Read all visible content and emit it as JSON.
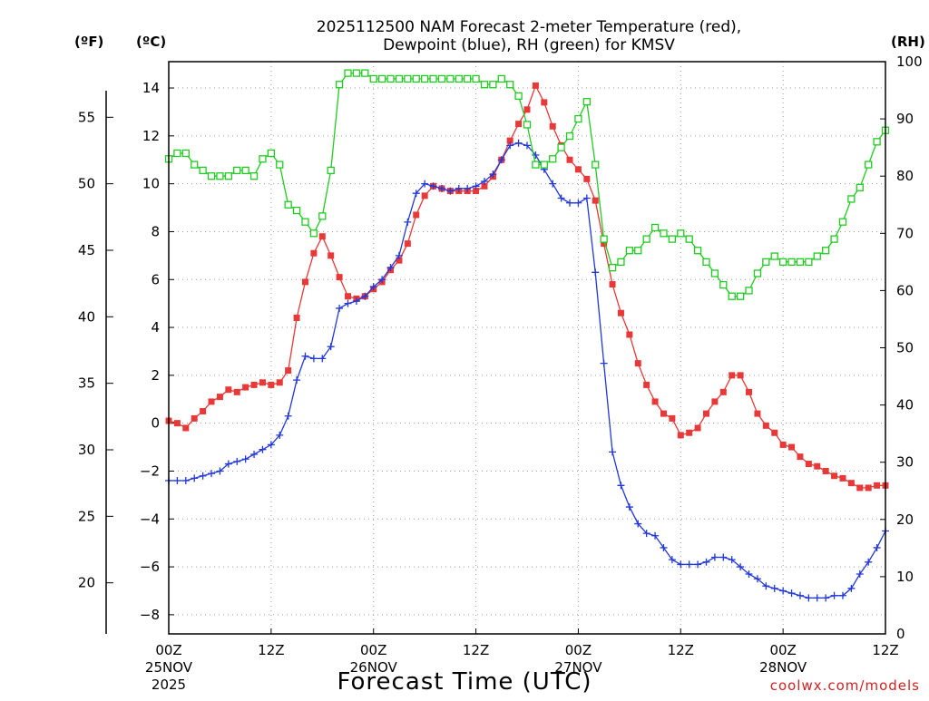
{
  "title": {
    "line1": "2025112500 NAM Forecast 2-meter Temperature (red),",
    "line2": "Dewpoint (blue), RH (green) for KMSV"
  },
  "axis_units": {
    "fahrenheit": "(ºF)",
    "celsius": "(ºC)",
    "rh": "(RH)"
  },
  "xlabel": "Forecast Time (UTC)",
  "credit": "coolwx.com/models",
  "colors": {
    "temperature": "#e83838",
    "dewpoint": "#2238d8",
    "rh": "#20cc20"
  },
  "chart_data": {
    "type": "line",
    "x_unit": "forecast hour",
    "x_range": [
      0,
      84
    ],
    "x_ticks": [
      {
        "hour": 0,
        "label": "00Z",
        "date": "25NOV",
        "year": "2025"
      },
      {
        "hour": 12,
        "label": "12Z"
      },
      {
        "hour": 24,
        "label": "00Z",
        "date": "26NOV"
      },
      {
        "hour": 36,
        "label": "12Z"
      },
      {
        "hour": 48,
        "label": "00Z",
        "date": "27NOV"
      },
      {
        "hour": 60,
        "label": "12Z"
      },
      {
        "hour": 72,
        "label": "00Z",
        "date": "28NOV"
      },
      {
        "hour": 84,
        "label": "12Z"
      }
    ],
    "y_celsius": {
      "range": [
        -8.8,
        15.1
      ],
      "ticks": [
        -8,
        -6,
        -4,
        -2,
        0,
        2,
        4,
        6,
        8,
        10,
        12,
        14
      ]
    },
    "y_fahrenheit": {
      "ticks": [
        20,
        25,
        30,
        35,
        40,
        45,
        50,
        55
      ]
    },
    "y_rh": {
      "range": [
        0,
        100
      ],
      "ticks": [
        0,
        10,
        20,
        30,
        40,
        50,
        60,
        70,
        80,
        90,
        100
      ]
    },
    "grid": true,
    "x": [
      0,
      1,
      2,
      3,
      4,
      5,
      6,
      7,
      8,
      9,
      10,
      11,
      12,
      13,
      14,
      15,
      16,
      17,
      18,
      19,
      20,
      21,
      22,
      23,
      24,
      25,
      26,
      27,
      28,
      29,
      30,
      31,
      32,
      33,
      34,
      35,
      36,
      37,
      38,
      39,
      40,
      41,
      42,
      43,
      44,
      45,
      46,
      47,
      48,
      49,
      50,
      51,
      52,
      53,
      54,
      55,
      56,
      57,
      58,
      59,
      60,
      61,
      62,
      63,
      64,
      65,
      66,
      67,
      68,
      69,
      70,
      71,
      72,
      73,
      74,
      75,
      76,
      77,
      78,
      79,
      80,
      81,
      82,
      83,
      84
    ],
    "series": [
      {
        "name": "Temperature (red)",
        "key": "temperature",
        "axis": "celsius",
        "marker": "square-filled",
        "values": [
          0.1,
          0.0,
          -0.2,
          0.2,
          0.5,
          0.9,
          1.1,
          1.4,
          1.3,
          1.5,
          1.6,
          1.7,
          1.6,
          1.7,
          2.2,
          4.4,
          5.9,
          7.1,
          7.8,
          7.0,
          6.1,
          5.3,
          5.2,
          5.3,
          5.6,
          5.9,
          6.4,
          6.8,
          7.5,
          8.7,
          9.5,
          9.9,
          9.8,
          9.7,
          9.7,
          9.7,
          9.7,
          9.9,
          10.3,
          11.0,
          11.8,
          12.5,
          13.1,
          14.1,
          13.4,
          12.4,
          11.6,
          11.0,
          10.6,
          10.2,
          9.3,
          7.5,
          5.8,
          4.6,
          3.7,
          2.5,
          1.6,
          0.9,
          0.4,
          0.2,
          -0.5,
          -0.4,
          -0.2,
          0.4,
          0.9,
          1.3,
          2.0,
          2.0,
          1.3,
          0.4,
          -0.1,
          -0.4,
          -0.9,
          -1.0,
          -1.4,
          -1.7,
          -1.8,
          -2.0,
          -2.2,
          -2.3,
          -2.5,
          -2.7,
          -2.7,
          -2.6,
          -2.6
        ]
      },
      {
        "name": "Dewpoint (blue)",
        "key": "dewpoint",
        "axis": "celsius",
        "marker": "plus",
        "values": [
          -2.4,
          -2.4,
          -2.4,
          -2.3,
          -2.2,
          -2.1,
          -2.0,
          -1.7,
          -1.6,
          -1.5,
          -1.3,
          -1.1,
          -0.9,
          -0.5,
          0.3,
          1.8,
          2.8,
          2.7,
          2.7,
          3.2,
          4.8,
          5.0,
          5.1,
          5.3,
          5.7,
          6.0,
          6.5,
          7.0,
          8.4,
          9.6,
          10.0,
          9.9,
          9.8,
          9.7,
          9.8,
          9.8,
          9.9,
          10.1,
          10.4,
          11.0,
          11.6,
          11.7,
          11.6,
          11.2,
          10.6,
          10.0,
          9.4,
          9.2,
          9.2,
          9.4,
          6.3,
          2.5,
          -1.2,
          -2.6,
          -3.5,
          -4.2,
          -4.6,
          -4.7,
          -5.2,
          -5.7,
          -5.9,
          -5.9,
          -5.9,
          -5.8,
          -5.6,
          -5.6,
          -5.7,
          -6.0,
          -6.3,
          -6.5,
          -6.8,
          -6.9,
          -7.0,
          -7.1,
          -7.2,
          -7.3,
          -7.3,
          -7.3,
          -7.2,
          -7.2,
          -6.9,
          -6.3,
          -5.8,
          -5.2,
          -4.5
        ]
      },
      {
        "name": "RH (green)",
        "key": "rh",
        "axis": "rh",
        "marker": "square-open",
        "values": [
          83,
          84,
          84,
          82,
          81,
          80,
          80,
          80,
          81,
          81,
          80,
          83,
          84,
          82,
          75,
          74,
          72,
          70,
          73,
          81,
          96,
          98,
          98,
          98,
          97,
          97,
          97,
          97,
          97,
          97,
          97,
          97,
          97,
          97,
          97,
          97,
          97,
          96,
          96,
          97,
          96,
          94,
          89,
          82,
          82,
          83,
          85,
          87,
          90,
          93,
          82,
          69,
          64,
          65,
          67,
          67,
          69,
          71,
          70,
          69,
          70,
          69,
          67,
          65,
          63,
          61,
          59,
          59,
          60,
          63,
          65,
          66,
          65,
          65,
          65,
          65,
          66,
          67,
          69,
          72,
          76,
          78,
          82,
          86,
          88
        ]
      }
    ]
  }
}
